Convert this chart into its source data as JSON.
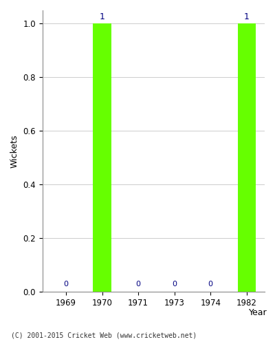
{
  "years": [
    "1969",
    "1970",
    "1971",
    "1973",
    "1974",
    "1982"
  ],
  "values": [
    0,
    1,
    0,
    0,
    0,
    1
  ],
  "bar_color": "#66ff00",
  "label_color": "#000080",
  "xlabel": "Year",
  "ylabel": "Wickets",
  "ylim": [
    0.0,
    1.05
  ],
  "yticks": [
    0.0,
    0.2,
    0.4,
    0.6,
    0.8,
    1.0
  ],
  "footer": "(C) 2001-2015 Cricket Web (www.cricketweb.net)",
  "background_color": "#ffffff",
  "grid_color": "#cccccc",
  "bar_width": 0.5
}
